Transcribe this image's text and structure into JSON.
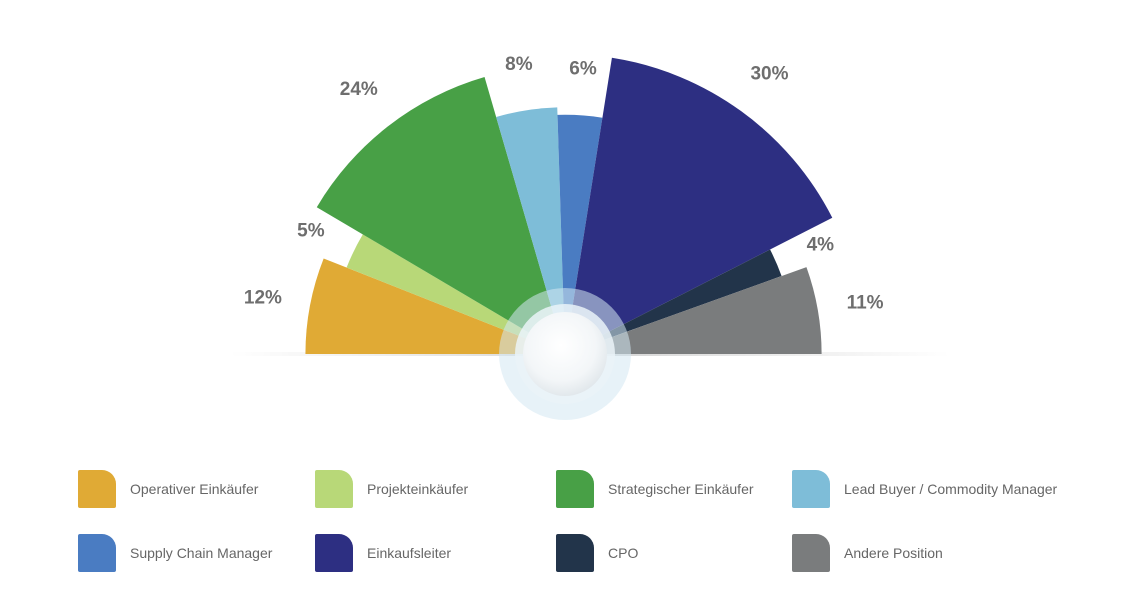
{
  "chart_data": {
    "type": "pie",
    "variant": "half-rose",
    "categories": [
      "Operativer Einkäufer",
      "Projekteinkäufer",
      "Strategischer Einkäufer",
      "Lead Buyer / Commodity Manager",
      "Supply Chain Manager",
      "Einkaufsleiter",
      "CPO",
      "Andere Position"
    ],
    "values": [
      12,
      5,
      24,
      8,
      6,
      30,
      4,
      11
    ],
    "labels": [
      "12%",
      "5%",
      "24%",
      "8%",
      "6%",
      "30%",
      "4%",
      "11%"
    ],
    "colors": [
      "#e0aa35",
      "#b8d878",
      "#48a046",
      "#7ebdd8",
      "#4a7cc2",
      "#2d2f82",
      "#22344a",
      "#7a7c7d"
    ],
    "legend_position": "bottom"
  }
}
